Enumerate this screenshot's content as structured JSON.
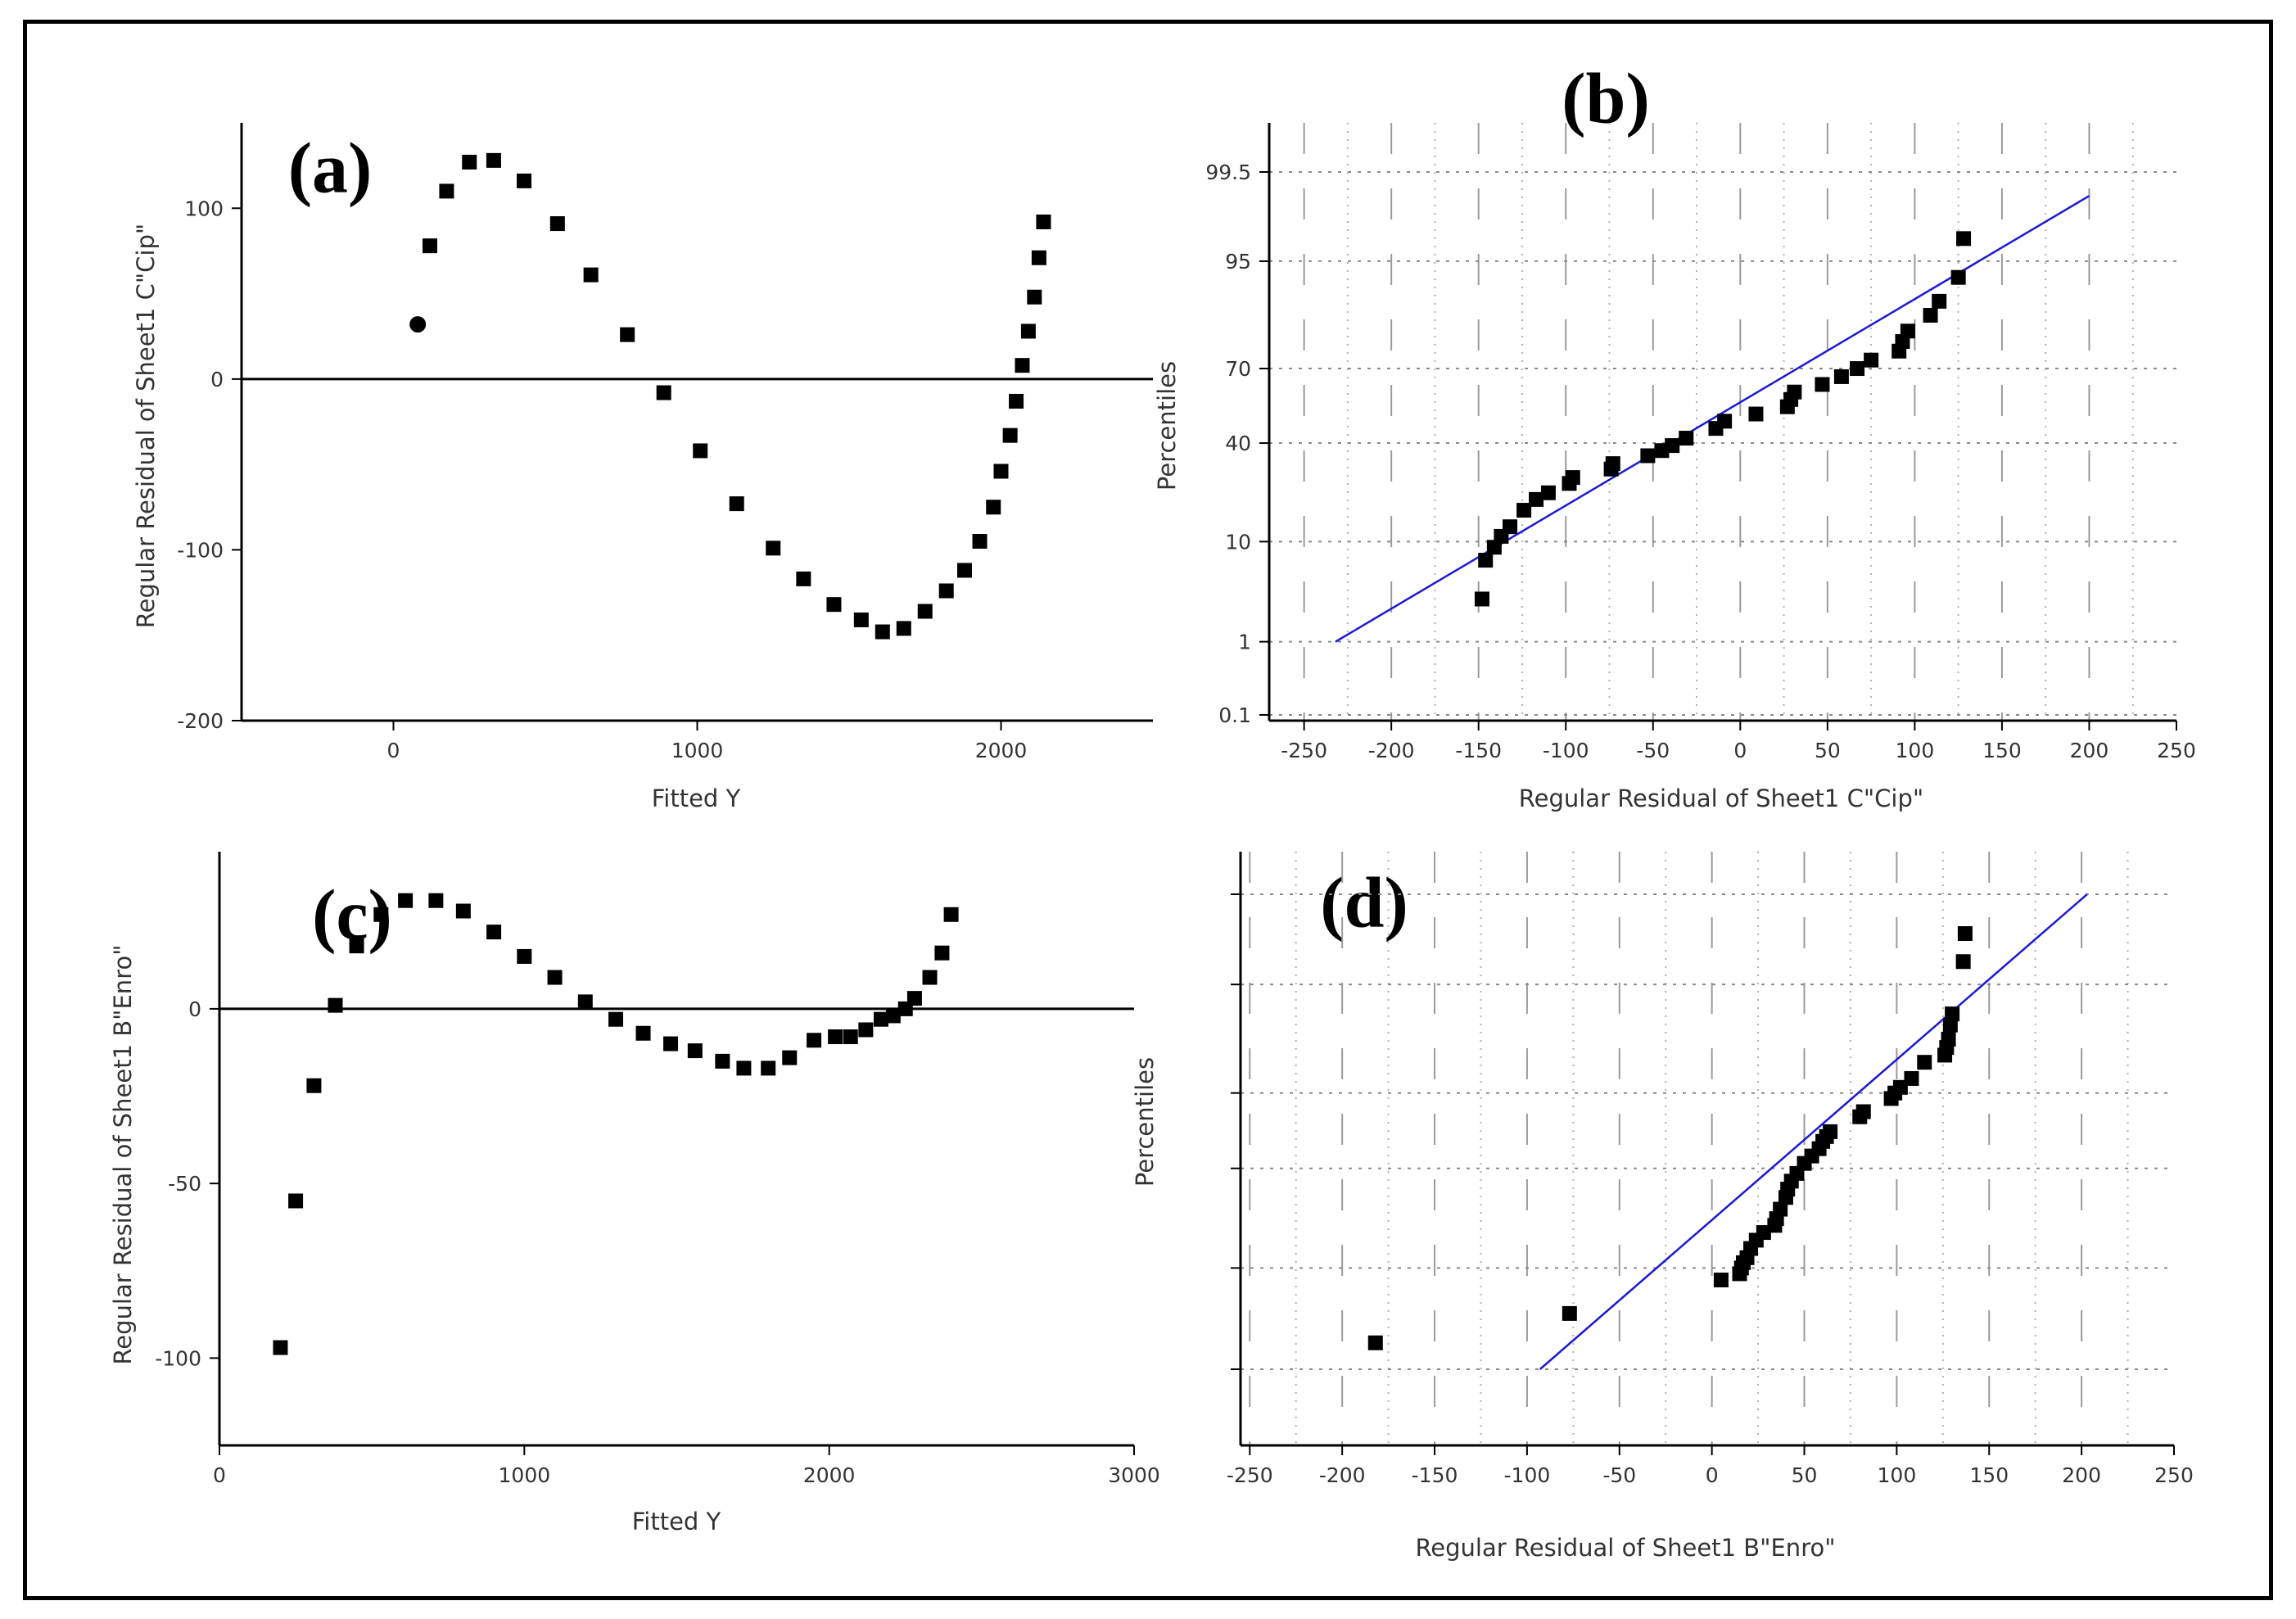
{
  "colors": {
    "fit_line": "#1a1ad6",
    "marker": "#000000"
  },
  "chart_data": [
    {
      "id": "a",
      "panel_label": "(a)",
      "type": "scatter",
      "title": "",
      "xlabel": "Fitted Y",
      "ylabel": "Regular Residual of Sheet1 C\"Cip\"",
      "xlim": [
        -500,
        2500
      ],
      "ylim": [
        -200,
        150
      ],
      "xticks": [
        0,
        1000,
        2000
      ],
      "xtick_labels": [
        "0",
        "1000",
        "2000"
      ],
      "yticks": [
        -200,
        -100,
        0,
        100
      ],
      "ytick_labels": [
        "-200",
        "-100",
        "0",
        "100"
      ],
      "zero_line": true,
      "points": [
        [
          80,
          32
        ],
        [
          120,
          78
        ],
        [
          175,
          110
        ],
        [
          250,
          127
        ],
        [
          330,
          128
        ],
        [
          430,
          116
        ],
        [
          540,
          91
        ],
        [
          650,
          61
        ],
        [
          770,
          26
        ],
        [
          890,
          -8
        ],
        [
          1010,
          -42
        ],
        [
          1130,
          -73
        ],
        [
          1250,
          -99
        ],
        [
          1350,
          -117
        ],
        [
          1450,
          -132
        ],
        [
          1540,
          -141
        ],
        [
          1610,
          -148
        ],
        [
          1680,
          -146
        ],
        [
          1750,
          -136
        ],
        [
          1820,
          -124
        ],
        [
          1880,
          -112
        ],
        [
          1930,
          -95
        ],
        [
          1975,
          -75
        ],
        [
          2000,
          -54
        ],
        [
          2030,
          -33
        ],
        [
          2050,
          -13
        ],
        [
          2070,
          8
        ],
        [
          2090,
          28
        ],
        [
          2110,
          48
        ],
        [
          2125,
          71
        ],
        [
          2140,
          92
        ]
      ]
    },
    {
      "id": "b",
      "panel_label": "(b)",
      "type": "scatter",
      "title": "",
      "xlabel": "Regular Residual of Sheet1 C\"Cip\"",
      "ylabel": "Percentiles",
      "xlim": [
        -270,
        250
      ],
      "xticks": [
        -250,
        -200,
        -150,
        -100,
        -50,
        0,
        50,
        100,
        150,
        200,
        250
      ],
      "xtick_labels": [
        "-250",
        "-200",
        "-150",
        "-100",
        "-50",
        "0",
        "50",
        "100",
        "150",
        "200",
        "250"
      ],
      "y_scale": "normal-probability",
      "yticks": [
        0.1,
        1,
        10,
        40,
        70,
        95,
        99.5
      ],
      "ytick_labels": [
        "0.1",
        "1",
        "10",
        "40",
        "70",
        "95",
        "99.5"
      ],
      "fit_line": {
        "x": [
          -232,
          200
        ],
        "y": [
          1,
          99
        ]
      },
      "points": [
        [
          -148,
          3
        ],
        [
          -146,
          7
        ],
        [
          -141,
          9
        ],
        [
          -137,
          11
        ],
        [
          -132,
          13
        ],
        [
          -124,
          17
        ],
        [
          -117,
          20
        ],
        [
          -110,
          22
        ],
        [
          -98,
          25
        ],
        [
          -96,
          27
        ],
        [
          -74,
          30
        ],
        [
          -73,
          32
        ],
        [
          -53,
          35
        ],
        [
          -45,
          37
        ],
        [
          -39,
          39
        ],
        [
          -31,
          42
        ],
        [
          -14,
          46
        ],
        [
          -9,
          49
        ],
        [
          9,
          52
        ],
        [
          27,
          55
        ],
        [
          29,
          58
        ],
        [
          31,
          61
        ],
        [
          47,
          64
        ],
        [
          58,
          67
        ],
        [
          67,
          70
        ],
        [
          75,
          73
        ],
        [
          91,
          76
        ],
        [
          93,
          79
        ],
        [
          96,
          82
        ],
        [
          109,
          86
        ],
        [
          114,
          89
        ],
        [
          125,
          93
        ],
        [
          128,
          97
        ]
      ]
    },
    {
      "id": "c",
      "panel_label": "(c)",
      "type": "scatter",
      "title": "",
      "xlabel": "Fitted Y",
      "ylabel": "Regular Residual of Sheet1 B\"Enro\"",
      "xlim": [
        0,
        3000
      ],
      "ylim": [
        -125,
        45
      ],
      "xticks": [
        0,
        1000,
        2000,
        3000
      ],
      "xtick_labels": [
        "0",
        "1000",
        "2000",
        "3000"
      ],
      "yticks": [
        -100,
        -50,
        0
      ],
      "ytick_labels": [
        "-100",
        "-50",
        "0"
      ],
      "zero_line": true,
      "points": [
        [
          200,
          -97
        ],
        [
          250,
          -55
        ],
        [
          310,
          -22
        ],
        [
          380,
          1
        ],
        [
          450,
          18
        ],
        [
          530,
          27
        ],
        [
          610,
          31
        ],
        [
          710,
          31
        ],
        [
          800,
          28
        ],
        [
          900,
          22
        ],
        [
          1000,
          15
        ],
        [
          1100,
          9
        ],
        [
          1200,
          2
        ],
        [
          1300,
          -3
        ],
        [
          1390,
          -7
        ],
        [
          1480,
          -10
        ],
        [
          1560,
          -12
        ],
        [
          1650,
          -15
        ],
        [
          1720,
          -17
        ],
        [
          1800,
          -17
        ],
        [
          1870,
          -14
        ],
        [
          1950,
          -9
        ],
        [
          2020,
          -8
        ],
        [
          2070,
          -8
        ],
        [
          2120,
          -6
        ],
        [
          2170,
          -3
        ],
        [
          2210,
          -2
        ],
        [
          2250,
          0
        ],
        [
          2280,
          3
        ],
        [
          2330,
          9
        ],
        [
          2370,
          16
        ],
        [
          2400,
          27
        ]
      ]
    },
    {
      "id": "d",
      "panel_label": "(d)",
      "type": "scatter",
      "title": "",
      "xlabel": "Regular Residual of Sheet1 B\"Enro\"",
      "ylabel": "Percentiles",
      "xlim": [
        -255,
        250
      ],
      "xticks": [
        -250,
        -200,
        -150,
        -100,
        -50,
        0,
        50,
        100,
        150,
        200,
        250
      ],
      "xtick_labels": [
        "-250",
        "-200",
        "-150",
        "-100",
        "-50",
        "0",
        "50",
        "100",
        "150",
        "200",
        "250"
      ],
      "y_scale": "normal-probability",
      "yticks": [
        1,
        10,
        40,
        70,
        95,
        99.5
      ],
      "ytick_labels": [],
      "fit_line": {
        "x": [
          -93,
          203
        ],
        "y": [
          1,
          99.5
        ]
      },
      "points": [
        [
          -182,
          2
        ],
        [
          -77,
          4
        ],
        [
          5,
          8
        ],
        [
          15,
          9
        ],
        [
          16,
          10
        ],
        [
          17,
          11
        ],
        [
          19,
          12
        ],
        [
          21,
          14
        ],
        [
          24,
          16
        ],
        [
          28,
          18
        ],
        [
          34,
          20
        ],
        [
          35,
          22
        ],
        [
          37,
          25
        ],
        [
          40,
          29
        ],
        [
          41,
          32
        ],
        [
          43,
          35
        ],
        [
          46,
          38
        ],
        [
          50,
          42
        ],
        [
          54,
          45
        ],
        [
          58,
          48
        ],
        [
          60,
          51
        ],
        [
          62,
          53
        ],
        [
          64,
          55
        ],
        [
          80,
          61
        ],
        [
          82,
          63
        ],
        [
          97,
          68
        ],
        [
          99,
          70
        ],
        [
          102,
          72
        ],
        [
          108,
          75
        ],
        [
          115,
          80
        ],
        [
          126,
          82
        ],
        [
          127,
          84
        ],
        [
          128,
          86
        ],
        [
          129,
          89
        ],
        [
          130,
          91
        ],
        [
          136,
          97
        ],
        [
          137,
          98.5
        ]
      ]
    }
  ]
}
